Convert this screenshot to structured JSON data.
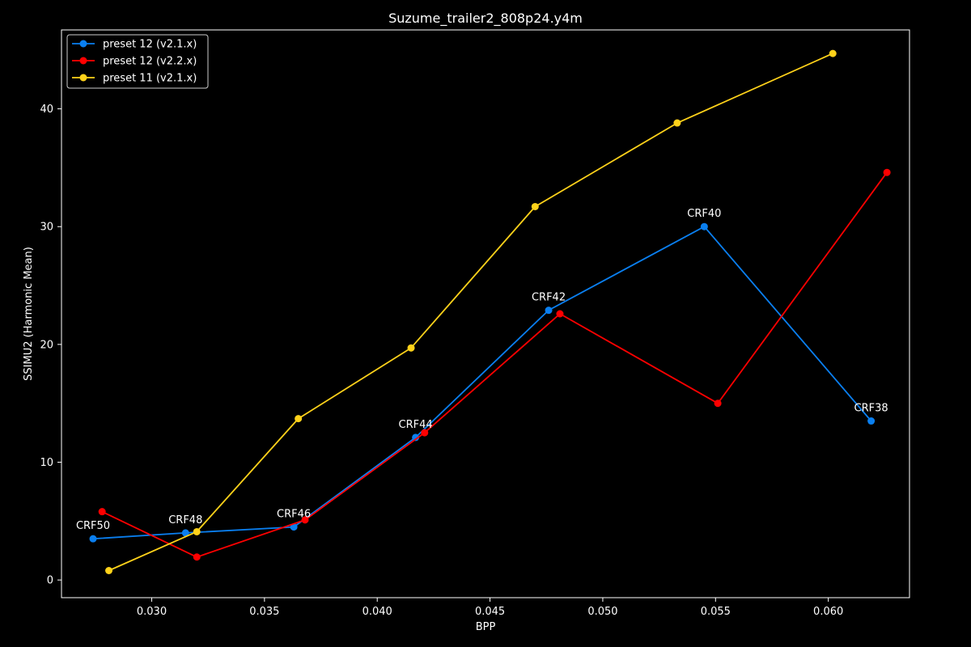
{
  "chart_data": {
    "type": "line",
    "title": "Suzume_trailer2_808p24.y4m",
    "xlabel": "BPP",
    "ylabel": "SSIMU2 (Harmonic Mean)",
    "xlim": [
      0.026,
      0.0636
    ],
    "ylim": [
      -1.5,
      46.7
    ],
    "x_ticks": [
      0.03,
      0.035,
      0.04,
      0.045,
      0.05,
      0.055,
      0.06
    ],
    "x_tick_labels": [
      "0.030",
      "0.035",
      "0.040",
      "0.045",
      "0.050",
      "0.055",
      "0.060"
    ],
    "y_ticks": [
      0,
      10,
      20,
      30,
      40
    ],
    "y_tick_labels": [
      "0",
      "10",
      "20",
      "30",
      "40"
    ],
    "grid": false,
    "legend_position": "top-left",
    "background": "#000000",
    "foreground": "#ffffff",
    "series": [
      {
        "name": "preset 12 (v2.1.x)",
        "color": "#0a7ff0",
        "points": [
          {
            "x": 0.0274,
            "y": 3.5
          },
          {
            "x": 0.0315,
            "y": 4.0
          },
          {
            "x": 0.0363,
            "y": 4.5
          },
          {
            "x": 0.0417,
            "y": 12.1
          },
          {
            "x": 0.0476,
            "y": 22.9
          },
          {
            "x": 0.0545,
            "y": 30.0
          },
          {
            "x": 0.0619,
            "y": 13.5
          }
        ]
      },
      {
        "name": "preset 12 (v2.2.x)",
        "color": "#ff0000",
        "points": [
          {
            "x": 0.0278,
            "y": 5.8
          },
          {
            "x": 0.032,
            "y": 1.95
          },
          {
            "x": 0.0368,
            "y": 5.1
          },
          {
            "x": 0.0421,
            "y": 12.5
          },
          {
            "x": 0.0481,
            "y": 22.6
          },
          {
            "x": 0.0551,
            "y": 15.0
          },
          {
            "x": 0.0626,
            "y": 34.6
          }
        ]
      },
      {
        "name": "preset 11 (v2.1.x)",
        "color": "#ffd21a",
        "points": [
          {
            "x": 0.0281,
            "y": 0.8
          },
          {
            "x": 0.032,
            "y": 4.1
          },
          {
            "x": 0.0365,
            "y": 13.7
          },
          {
            "x": 0.0415,
            "y": 19.7
          },
          {
            "x": 0.047,
            "y": 31.7
          },
          {
            "x": 0.0533,
            "y": 38.8
          },
          {
            "x": 0.0602,
            "y": 44.7
          }
        ]
      }
    ],
    "annotations": [
      {
        "text": "CRF50",
        "x": 0.0274,
        "y": 3.5
      },
      {
        "text": "CRF48",
        "x": 0.0315,
        "y": 4.0
      },
      {
        "text": "CRF46",
        "x": 0.0363,
        "y": 4.5
      },
      {
        "text": "CRF44",
        "x": 0.0417,
        "y": 12.1
      },
      {
        "text": "CRF42",
        "x": 0.0476,
        "y": 22.9
      },
      {
        "text": "CRF40",
        "x": 0.0545,
        "y": 30.0
      },
      {
        "text": "CRF38",
        "x": 0.0619,
        "y": 13.5
      }
    ]
  }
}
